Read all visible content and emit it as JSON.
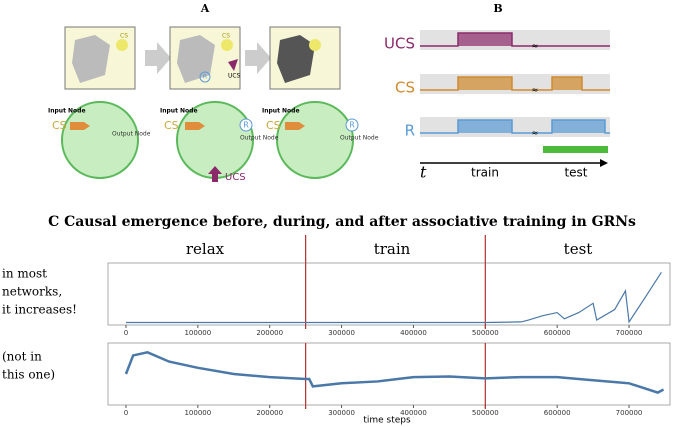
{
  "panel_a": {
    "label": "A",
    "images": [
      {
        "badges": [
          "CS"
        ]
      },
      {
        "badges": [
          "CS",
          "UCS",
          "R"
        ]
      },
      {
        "badges": []
      }
    ],
    "networks": [
      {
        "input_label": "Input Node",
        "input": "CS",
        "output_label": "Output Node"
      },
      {
        "input_label": "Input Node",
        "input": "CS",
        "output": "R",
        "output_label": "Output Node",
        "extra": "UCS"
      },
      {
        "input_label": "Input Node",
        "input": "CS",
        "output": "R",
        "output_label": "Output Node"
      }
    ]
  },
  "panel_b": {
    "label": "B",
    "signals": [
      {
        "name": "UCS",
        "color": "#8b2a6a"
      },
      {
        "name": "CS",
        "color": "#d08a2e"
      },
      {
        "name": "R",
        "color": "#5b9bd5"
      }
    ],
    "time_label": "t",
    "phases": [
      "train",
      "test"
    ]
  },
  "panel_c": {
    "title": "C Causal emergence before, during, and after associative training in GRNs",
    "phases": [
      "relax",
      "train",
      "test"
    ],
    "notes": [
      [
        "in most",
        "networks,",
        "it increases!"
      ],
      [
        "(not in",
        "this one)"
      ]
    ],
    "x_label": "time steps",
    "xlim": [
      -25000,
      757000
    ],
    "xticks": [
      0,
      100000,
      200000,
      300000,
      400000,
      500000,
      600000,
      700000
    ],
    "phase_boundaries": [
      250000,
      500000
    ],
    "ylim": [
      0,
      1
    ],
    "color": "#4a78a8",
    "series": [
      {
        "x": [
          0,
          100000,
          200000,
          300000,
          400000,
          500000,
          550000,
          560000,
          580000,
          600000,
          610000,
          630000,
          650000,
          655000,
          680000,
          695000,
          700000,
          720000,
          745000
        ],
        "values": [
          0.04,
          0.04,
          0.04,
          0.04,
          0.04,
          0.04,
          0.05,
          0.08,
          0.15,
          0.2,
          0.1,
          0.2,
          0.35,
          0.08,
          0.25,
          0.55,
          0.05,
          0.4,
          0.85
        ]
      },
      {
        "x": [
          0,
          10000,
          30000,
          60000,
          100000,
          150000,
          200000,
          250000,
          255000,
          260000,
          300000,
          350000,
          400000,
          450000,
          500000,
          550000,
          600000,
          650000,
          700000,
          740000,
          748000
        ],
        "values": [
          0.5,
          0.8,
          0.85,
          0.7,
          0.6,
          0.5,
          0.45,
          0.42,
          0.42,
          0.3,
          0.35,
          0.38,
          0.45,
          0.46,
          0.43,
          0.45,
          0.45,
          0.4,
          0.35,
          0.2,
          0.25
        ]
      }
    ]
  }
}
